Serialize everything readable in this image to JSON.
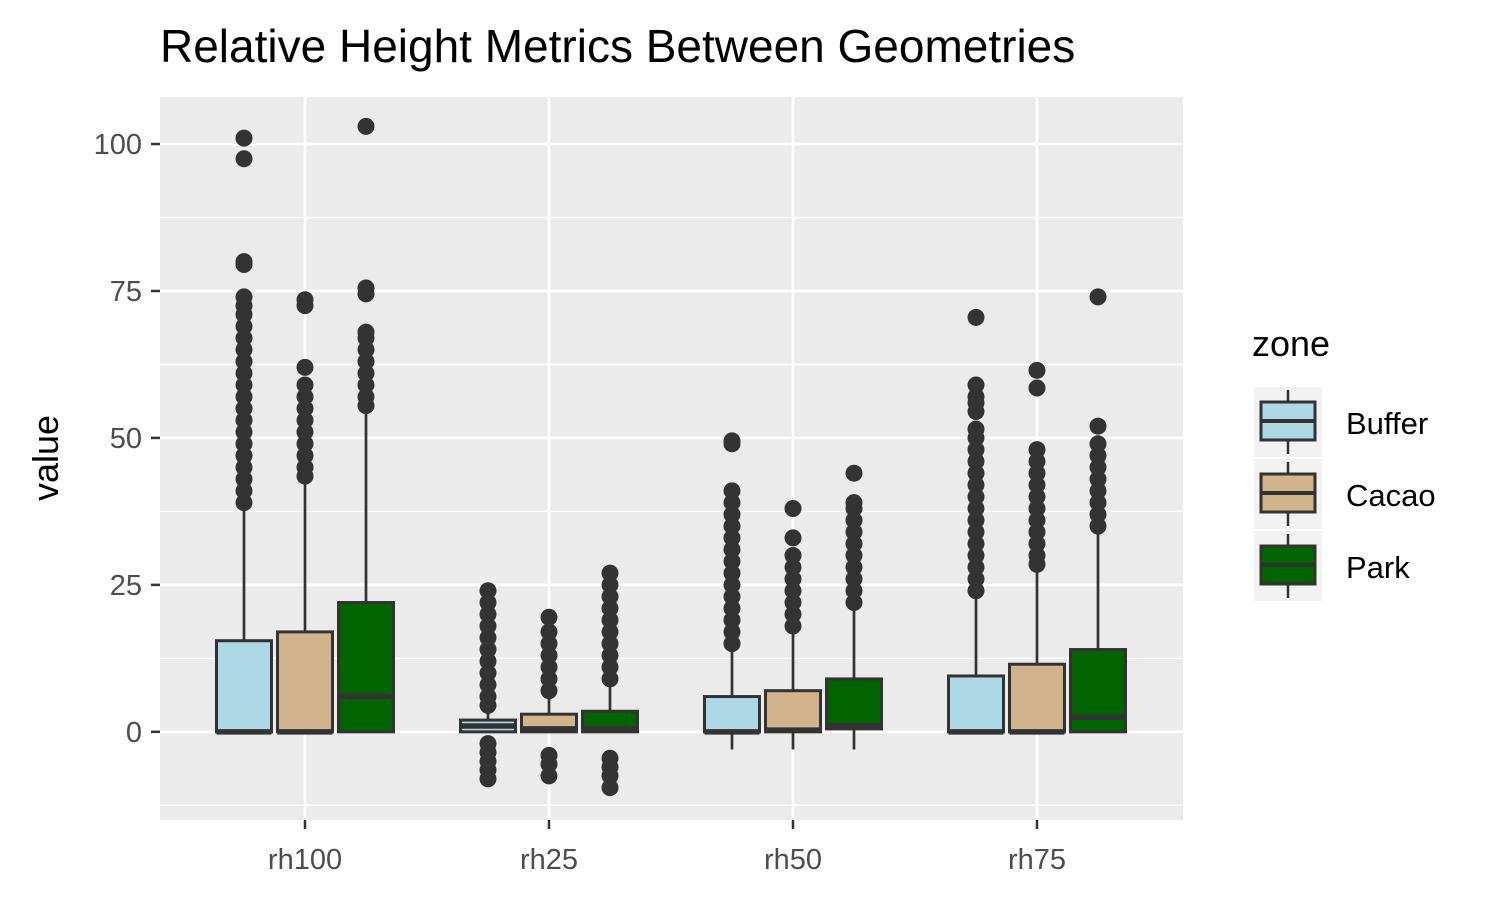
{
  "chart_data": {
    "type": "boxplot",
    "title": "Relative Height Metrics Between Geometries",
    "ylabel": "value",
    "xlabel": "",
    "categories": [
      "rh100",
      "rh25",
      "rh50",
      "rh75"
    ],
    "yticks": [
      0,
      25,
      50,
      75,
      100
    ],
    "ylim": [
      -15,
      108
    ],
    "grid": true,
    "legend": {
      "title": "zone",
      "placement": "right",
      "entries": [
        "Buffer",
        "Cacao",
        "Park"
      ]
    },
    "colors": {
      "Buffer": "#add8e6",
      "Cacao": "#d2b48c",
      "Park": "#006400",
      "panel": "#ebebeb",
      "grid": "#ffffff",
      "outline": "#333333"
    },
    "series": [
      {
        "name": "Buffer",
        "boxes": [
          {
            "category": "rh100",
            "q1": 0,
            "median": 0,
            "q3": 15.5,
            "whisker_low": 0,
            "whisker_high": 38.5,
            "outliers": [
              39,
              41,
              43,
              45,
              47,
              49,
              51,
              53,
              55,
              57,
              59,
              61,
              63,
              65,
              67,
              69,
              71,
              72.5,
              74,
              79.5,
              80,
              97.5,
              101
            ]
          },
          {
            "category": "rh25",
            "q1": 0,
            "median": 1,
            "q3": 2,
            "whisker_low": 0,
            "whisker_high": 4,
            "outliers": [
              4.5,
              6,
              8,
              10,
              12,
              14,
              16,
              18,
              20,
              22,
              24,
              -2,
              -3.5,
              -5,
              -6.5,
              -8
            ]
          },
          {
            "category": "rh50",
            "q1": 0,
            "median": 0,
            "q3": 6,
            "whisker_low": -3,
            "whisker_high": 14.5,
            "outliers": [
              15,
              17,
              19,
              21,
              23,
              25,
              27,
              29,
              31,
              33,
              35,
              37,
              39,
              41,
              49,
              49.5
            ]
          },
          {
            "category": "rh75",
            "q1": 0,
            "median": 0,
            "q3": 9.5,
            "whisker_low": 0,
            "whisker_high": 23.5,
            "outliers": [
              24,
              26,
              28,
              30,
              32,
              34,
              36,
              38,
              40,
              42,
              44,
              46,
              48,
              50,
              51.5,
              54.5,
              56,
              57,
              59,
              70.5
            ]
          }
        ]
      },
      {
        "name": "Cacao",
        "boxes": [
          {
            "category": "rh100",
            "q1": 0,
            "median": 0,
            "q3": 17,
            "whisker_low": 0,
            "whisker_high": 43,
            "outliers": [
              43.5,
              45,
              47,
              49,
              51,
              53,
              55,
              57,
              59,
              62,
              72.5,
              73.5
            ]
          },
          {
            "category": "rh25",
            "q1": 0,
            "median": 0.5,
            "q3": 3,
            "whisker_low": 0,
            "whisker_high": 6.5,
            "outliers": [
              7,
              9,
              11,
              13,
              15,
              17,
              19.5,
              -4,
              -5.5,
              -7.5
            ]
          },
          {
            "category": "rh50",
            "q1": 0,
            "median": 0.3,
            "q3": 7,
            "whisker_low": -3,
            "whisker_high": 17.5,
            "outliers": [
              18,
              20,
              22,
              24,
              26,
              28,
              30,
              33,
              38
            ]
          },
          {
            "category": "rh75",
            "q1": 0,
            "median": 0,
            "q3": 11.5,
            "whisker_low": 0,
            "whisker_high": 28,
            "outliers": [
              28.5,
              30,
              32,
              34,
              36,
              38,
              40,
              42,
              44,
              46,
              48,
              58.5,
              61.5
            ]
          }
        ]
      },
      {
        "name": "Park",
        "boxes": [
          {
            "category": "rh100",
            "q1": 0,
            "median": 6,
            "q3": 22,
            "whisker_low": 0,
            "whisker_high": 55,
            "outliers": [
              55.5,
              57,
              59,
              61,
              63,
              65,
              67,
              68,
              74.5,
              75.5,
              103
            ]
          },
          {
            "category": "rh25",
            "q1": 0,
            "median": 0.5,
            "q3": 3.5,
            "whisker_low": 0,
            "whisker_high": 8.5,
            "outliers": [
              9,
              11,
              13,
              15,
              17,
              19,
              21,
              23,
              25,
              27,
              -4.5,
              -6,
              -7.5,
              -9.5
            ]
          },
          {
            "category": "rh50",
            "q1": 0.5,
            "median": 1,
            "q3": 9,
            "whisker_low": -3,
            "whisker_high": 21.5,
            "outliers": [
              22,
              24,
              26,
              28,
              30,
              32,
              34,
              36,
              38,
              39,
              44
            ]
          },
          {
            "category": "rh75",
            "q1": 0,
            "median": 2.5,
            "q3": 14,
            "whisker_low": 0,
            "whisker_high": 34.5,
            "outliers": [
              35,
              37,
              39,
              41,
              43,
              45,
              47,
              49,
              52,
              74
            ]
          }
        ]
      }
    ]
  }
}
